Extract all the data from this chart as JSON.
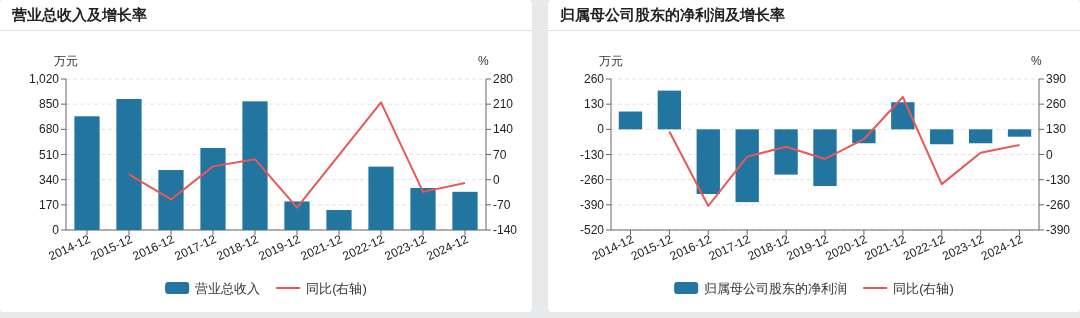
{
  "chart_data": [
    {
      "type": "bar",
      "title": "营业总收入及增长率",
      "categories": [
        "2014-12",
        "2015-12",
        "2016-12",
        "2017-12",
        "2018-12",
        "2019-12",
        "2021-12",
        "2022-12",
        "2023-12",
        "2024-12"
      ],
      "ylabel": "万元",
      "y2label": "%",
      "ylim": [
        0,
        1020
      ],
      "yticks": [
        0,
        170,
        340,
        510,
        680,
        850,
        {
          "value": 1020,
          "label": "1,020"
        }
      ],
      "y2lim": [
        -140,
        280
      ],
      "y2ticks": [
        -140,
        -70,
        0,
        70,
        140,
        210,
        280
      ],
      "grid": "y",
      "legend": "bottom",
      "series": [
        {
          "name": "营业总收入",
          "color": "#21759f",
          "values": [
            768,
            885,
            405,
            554,
            869,
            193,
            135,
            428,
            284,
            258
          ]
        },
        {
          "name": "同比(右轴)",
          "type": "line",
          "axis": "y2",
          "color": "#e85858",
          "values": [
            null,
            15,
            -55,
            37,
            57,
            -78,
            null,
            215,
            -34,
            -9
          ]
        }
      ]
    },
    {
      "type": "bar",
      "title": "归属母公司股东的净利润及增长率",
      "categories": [
        "2014-12",
        "2015-12",
        "2016-12",
        "2017-12",
        "2018-12",
        "2019-12",
        "2020-12",
        "2021-12",
        "2022-12",
        "2023-12",
        "2024-12"
      ],
      "ylabel": "万元",
      "y2label": "%",
      "ylim": [
        -520,
        260
      ],
      "yticks": [
        -520,
        -390,
        -260,
        -130,
        0,
        130,
        260
      ],
      "y2lim": [
        -390,
        390
      ],
      "y2ticks": [
        -390,
        -260,
        -130,
        0,
        130,
        260,
        390
      ],
      "grid": "y",
      "legend": "bottom",
      "series": [
        {
          "name": "归属母公司股东的净利润",
          "color": "#21759f",
          "values": [
            92,
            200,
            -334,
            -376,
            -234,
            -293,
            -72,
            140,
            -77,
            -72,
            -38
          ]
        },
        {
          "name": "同比(右轴)",
          "type": "line",
          "axis": "y2",
          "color": "#e85858",
          "values": [
            null,
            119,
            -266,
            -11,
            40,
            -23,
            79,
            297,
            -153,
            9,
            49
          ]
        }
      ]
    }
  ]
}
